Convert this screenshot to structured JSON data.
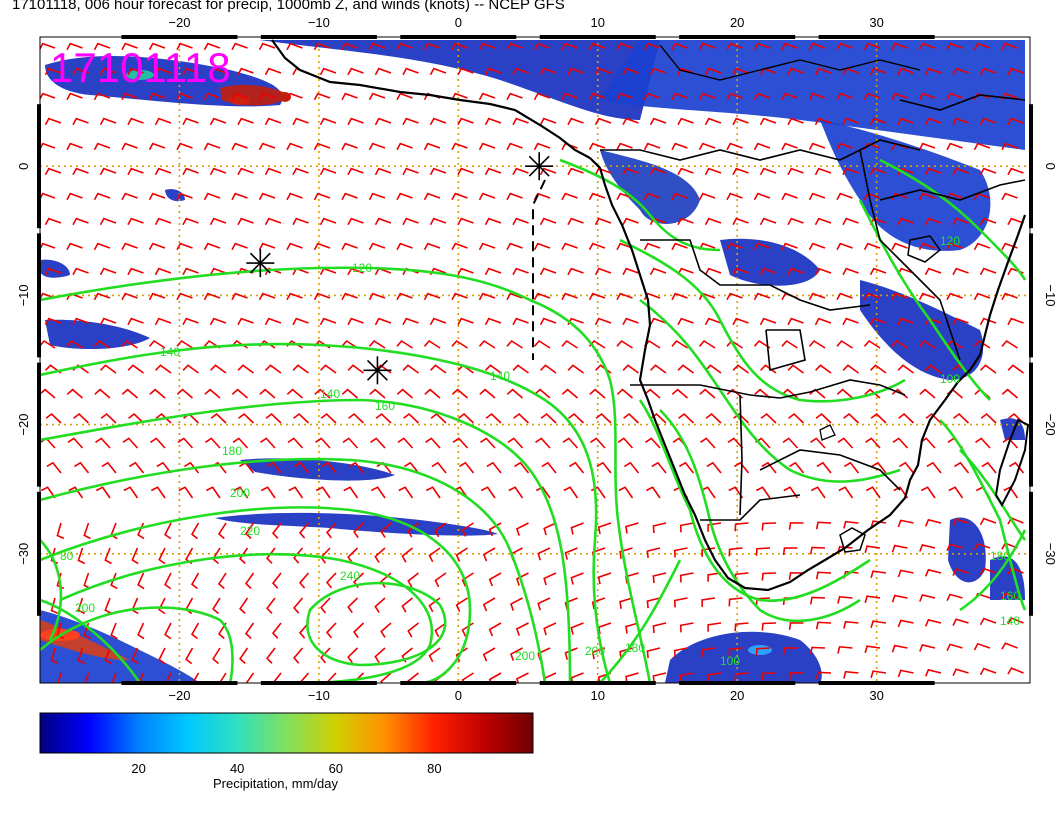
{
  "title": "17101118, 006 hour forecast for precip, 1000mb Z, and winds (knots) -- NCEP GFS",
  "stamp": "17101118",
  "colors": {
    "contour": "#22dd22",
    "barb": "#ee0000",
    "grid": "#d8a000",
    "stamp": "#ff00ff",
    "coast": "#000000"
  },
  "map": {
    "lon_ticks": [
      -20,
      -10,
      0,
      10,
      20,
      30
    ],
    "lon_tick_labels": [
      "−20",
      "−10",
      "0",
      "10",
      "20",
      "30"
    ],
    "lat_ticks": [
      0,
      -10,
      -20,
      -30
    ],
    "lat_tick_labels": [
      "0",
      "−10",
      "−20",
      "−30"
    ],
    "lon_range": [
      -30,
      41
    ],
    "lat_range": [
      -40,
      10
    ]
  },
  "contour_labels": [
    "120",
    "140",
    "140",
    "140",
    "160",
    "180",
    "200",
    "220",
    "240",
    "200",
    "200",
    "180",
    "180",
    "160",
    "140",
    "120",
    "100",
    "100",
    "80",
    "200"
  ],
  "markers": [
    {
      "name": "star-marker-1",
      "lon": -14.2,
      "lat": -7.5
    },
    {
      "name": "star-marker-2",
      "lon": -5.8,
      "lat": -15.8
    },
    {
      "name": "star-marker-3",
      "lon": 5.8,
      "lat": 0.0
    }
  ],
  "colorbar": {
    "tick_labels": [
      "20",
      "40",
      "60",
      "80"
    ],
    "tick_values": [
      20,
      40,
      60,
      80
    ],
    "label": "Precipitation, mm/day",
    "range": [
      0,
      100
    ],
    "colors": [
      "#000080",
      "#0000ff",
      "#0080ff",
      "#00c8ff",
      "#30e0c0",
      "#80e060",
      "#d0d000",
      "#ff9000",
      "#ff2000",
      "#c00000",
      "#700000"
    ]
  }
}
